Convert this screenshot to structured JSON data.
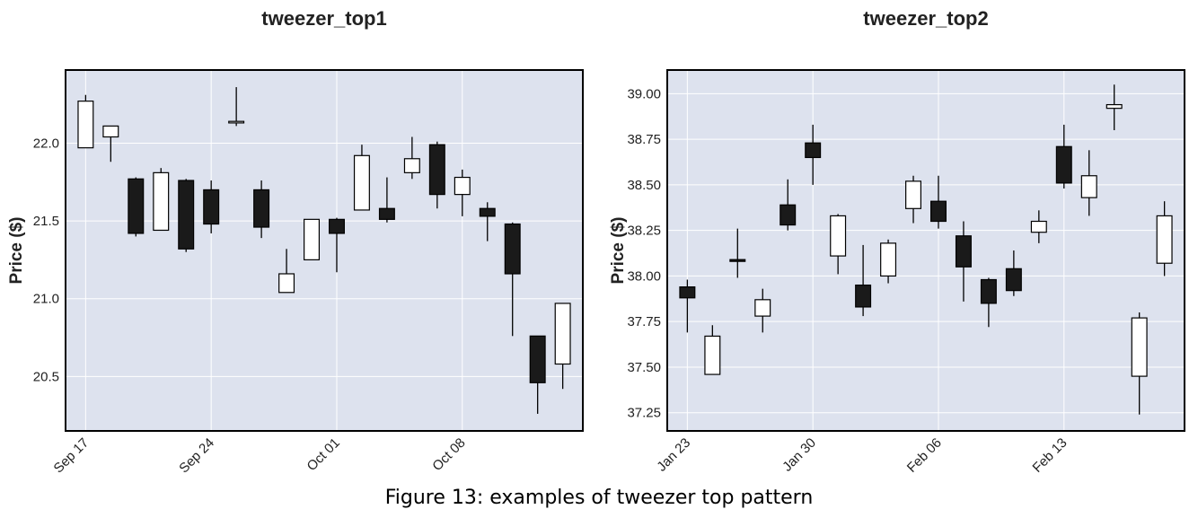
{
  "caption": "Figure 13: examples of tweezer top pattern",
  "colors": {
    "plot_bg": "#dde2ee",
    "grid": "#ffffff",
    "up_fill": "#ffffff",
    "down_fill": "#1a1a1a",
    "edge": "#000000"
  },
  "chart_data": [
    {
      "type": "candlestick",
      "title": "tweezer_top1",
      "xlabel": "",
      "ylabel": "Price ($)",
      "ylim": [
        20.15,
        22.47
      ],
      "grid": true,
      "yticks": [
        20.5,
        21.0,
        21.5,
        22.0
      ],
      "ytick_labels": [
        "20.5",
        "21.0",
        "21.5",
        "22.0"
      ],
      "xticks": [
        "Sep 17",
        "Sep 24",
        "Oct 01",
        "Oct 08"
      ],
      "dates": [
        "Sep 17",
        "Sep 18",
        "Sep 19",
        "Sep 20",
        "Sep 21",
        "Sep 24",
        "Sep 25",
        "Sep 26",
        "Sep 27",
        "Sep 28",
        "Oct 01",
        "Oct 02",
        "Oct 03",
        "Oct 04",
        "Oct 05",
        "Oct 08",
        "Oct 09",
        "Oct 10",
        "Oct 11",
        "Oct 12"
      ],
      "open": [
        21.97,
        22.04,
        21.77,
        21.44,
        21.76,
        21.7,
        22.13,
        21.7,
        21.04,
        21.25,
        21.51,
        21.57,
        21.58,
        21.81,
        21.99,
        21.67,
        21.58,
        21.48,
        20.76,
        20.58
      ],
      "high": [
        22.31,
        22.11,
        21.78,
        21.84,
        21.77,
        21.76,
        22.36,
        21.76,
        21.32,
        21.51,
        21.52,
        21.99,
        21.78,
        22.04,
        22.01,
        21.83,
        21.62,
        21.49,
        20.76,
        20.97
      ],
      "low": [
        21.97,
        21.88,
        21.4,
        21.44,
        21.3,
        21.42,
        22.11,
        21.39,
        21.04,
        21.25,
        21.17,
        21.57,
        21.49,
        21.77,
        21.58,
        21.53,
        21.37,
        20.76,
        20.26,
        20.42
      ],
      "close": [
        22.27,
        22.11,
        21.42,
        21.81,
        21.32,
        21.48,
        22.14,
        21.46,
        21.16,
        21.51,
        21.42,
        21.92,
        21.51,
        21.9,
        21.67,
        21.78,
        21.53,
        21.16,
        20.46,
        20.97
      ]
    },
    {
      "type": "candlestick",
      "title": "tweezer_top2",
      "xlabel": "",
      "ylabel": "Price ($)",
      "ylim": [
        37.15,
        39.13
      ],
      "grid": true,
      "yticks": [
        37.25,
        37.5,
        37.75,
        38.0,
        38.25,
        38.5,
        38.75,
        39.0
      ],
      "ytick_labels": [
        "37.25",
        "37.50",
        "37.75",
        "38.00",
        "38.25",
        "38.50",
        "38.75",
        "39.00"
      ],
      "xticks": [
        "Jan 23",
        "Jan 30",
        "Feb 06",
        "Feb 13"
      ],
      "dates": [
        "Jan 23",
        "Jan 24",
        "Jan 25",
        "Jan 26",
        "Jan 27",
        "Jan 30",
        "Jan 31",
        "Feb 01",
        "Feb 02",
        "Feb 03",
        "Feb 06",
        "Feb 07",
        "Feb 08",
        "Feb 09",
        "Feb 10",
        "Feb 13",
        "Feb 14",
        "Feb 15",
        "Feb 16",
        "Feb 17"
      ],
      "open": [
        37.94,
        37.46,
        38.09,
        37.78,
        38.39,
        38.73,
        38.11,
        37.95,
        38.0,
        38.37,
        38.41,
        38.22,
        37.98,
        38.04,
        38.24,
        38.71,
        38.43,
        38.92,
        37.45,
        38.07
      ],
      "high": [
        37.98,
        37.73,
        38.26,
        37.93,
        38.53,
        38.83,
        38.34,
        38.17,
        38.2,
        38.55,
        38.55,
        38.3,
        37.99,
        38.14,
        38.36,
        38.83,
        38.69,
        39.05,
        37.8,
        38.41
      ],
      "low": [
        37.69,
        37.46,
        37.99,
        37.69,
        38.25,
        38.5,
        38.01,
        37.78,
        37.96,
        38.29,
        38.26,
        37.86,
        37.72,
        37.89,
        38.18,
        38.48,
        38.33,
        38.8,
        37.24,
        38.0
      ],
      "close": [
        37.88,
        37.67,
        38.08,
        37.87,
        38.28,
        38.65,
        38.33,
        37.83,
        38.18,
        38.52,
        38.3,
        38.05,
        37.85,
        37.92,
        38.3,
        38.51,
        38.55,
        38.94,
        37.77,
        38.33
      ]
    }
  ]
}
